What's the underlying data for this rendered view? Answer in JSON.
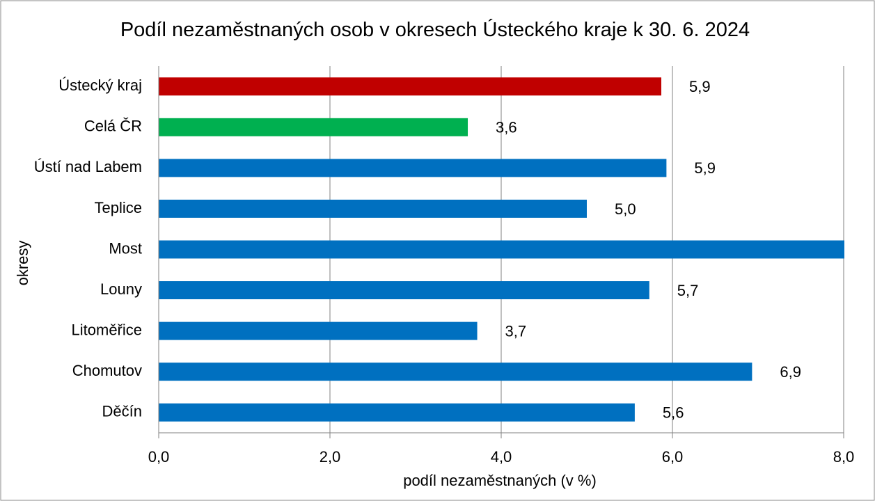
{
  "chart_data": {
    "type": "hbar",
    "title": "Podíl nezaměstnaných osob v okresech Ústeckého kraje k 30. 6. 2024",
    "x_label": "podíl nezaměstnaných (v %)",
    "y_label": "okresy",
    "categories": [
      "Ústecký kraj",
      "Celá ČR",
      "Ústí nad Labem",
      "Teplice",
      "Most",
      "Louny",
      "Litoměřice",
      "Chomutov",
      "Děčín"
    ],
    "values": [
      5.87,
      3.61,
      5.93,
      5.0,
      8.3,
      5.73,
      3.72,
      6.93,
      5.56
    ],
    "value_labels": [
      "5,9",
      "3,6",
      "5,9",
      "5,0",
      null,
      "5,7",
      "3,7",
      "6,9",
      "5,6"
    ],
    "colors": [
      "#c00000",
      "#00b050",
      "#0070c0",
      "#0070c0",
      "#0070c0",
      "#0070c0",
      "#0070c0",
      "#0070c0",
      "#0070c0"
    ],
    "xlim": [
      0,
      8
    ],
    "xticks": [
      {
        "value": 0,
        "label": "0,0"
      },
      {
        "value": 2,
        "label": "2,0"
      },
      {
        "value": 4,
        "label": "4,0"
      },
      {
        "value": 6,
        "label": "6,0"
      },
      {
        "value": 8,
        "label": "8,0"
      }
    ],
    "grid": true
  }
}
